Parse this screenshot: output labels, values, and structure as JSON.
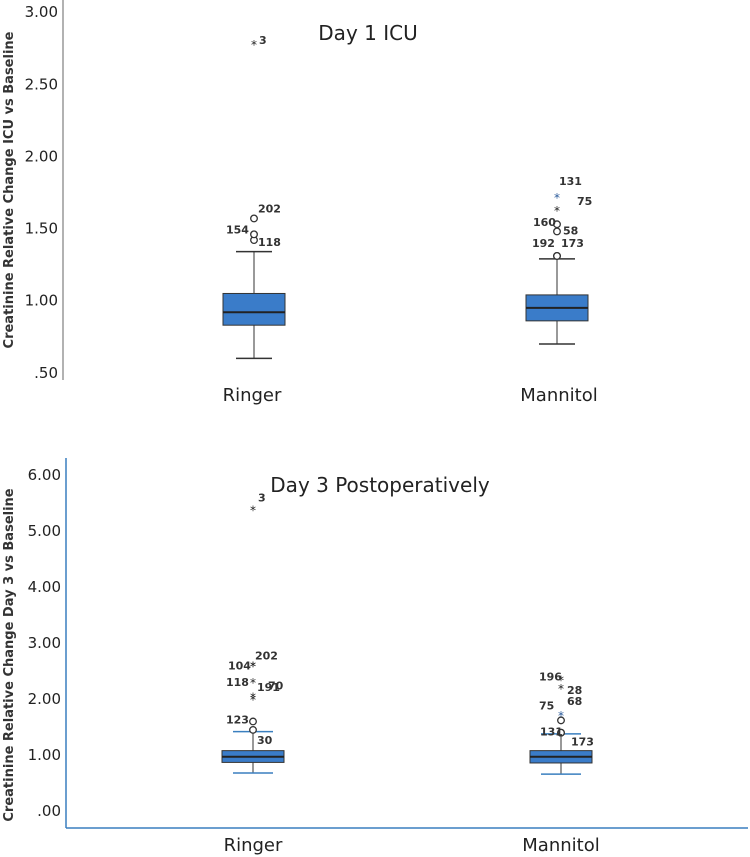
{
  "colors": {
    "box": "#3a7cc9",
    "axis": "#666666",
    "axis_accent": "#3a7fbf",
    "text": "#222222",
    "star_accent": "#2a5a9a"
  },
  "chart_data": [
    {
      "type": "boxplot",
      "title": "Day 1 ICU",
      "ylabel": "Creatinine Relative Change ICU vs Baseline",
      "ylim": [
        0.45,
        3.05
      ],
      "yticks": [
        0.5,
        1.0,
        1.5,
        2.0,
        2.5,
        3.0
      ],
      "ytick_labels": [
        ".50",
        "1.00",
        "1.50",
        "2.00",
        "2.50",
        "3.00"
      ],
      "categories": [
        "Ringer",
        "Mannitol"
      ],
      "boxes": [
        {
          "name": "Ringer",
          "whisker_low": 0.6,
          "q1": 0.83,
          "median": 0.92,
          "q3": 1.05,
          "whisker_high": 1.34,
          "outliers": [
            {
              "id": "118",
              "value": 1.42,
              "kind": "circle"
            },
            {
              "id": "154",
              "value": 1.46,
              "kind": "circle"
            },
            {
              "id": "202",
              "value": 1.57,
              "kind": "circle"
            },
            {
              "id": "3",
              "value": 2.78,
              "kind": "star"
            }
          ]
        },
        {
          "name": "Mannitol",
          "whisker_low": 0.7,
          "q1": 0.86,
          "median": 0.95,
          "q3": 1.04,
          "whisker_high": 1.29,
          "outliers": [
            {
              "id": "192",
              "value": 1.31,
              "kind": "circle"
            },
            {
              "id": "173",
              "value": 1.31,
              "kind": "circle"
            },
            {
              "id": "58",
              "value": 1.48,
              "kind": "circle"
            },
            {
              "id": "160",
              "value": 1.53,
              "kind": "circle"
            },
            {
              "id": "75",
              "value": 1.63,
              "kind": "star"
            },
            {
              "id": "131",
              "value": 1.72,
              "kind": "star"
            }
          ]
        }
      ]
    },
    {
      "type": "boxplot",
      "title": "Day 3 Postoperatively",
      "ylabel": "Creatinine Relative Change Day 3 vs Baseline",
      "ylim": [
        -0.3,
        6.3
      ],
      "yticks": [
        0,
        1,
        2,
        3,
        4,
        5,
        6
      ],
      "ytick_labels": [
        ".00",
        "1.00",
        "2.00",
        "3.00",
        "4.00",
        "5.00",
        "6.00"
      ],
      "categories": [
        "Ringer",
        "Mannitol"
      ],
      "boxes": [
        {
          "name": "Ringer",
          "whisker_low": 0.68,
          "q1": 0.87,
          "median": 0.97,
          "q3": 1.08,
          "whisker_high": 1.42,
          "outliers": [
            {
              "id": "30",
              "value": 1.45,
              "kind": "circle"
            },
            {
              "id": "123",
              "value": 1.6,
              "kind": "circle"
            },
            {
              "id": "191",
              "value": 2.0,
              "kind": "star"
            },
            {
              "id": "70",
              "value": 2.05,
              "kind": "star"
            },
            {
              "id": "118",
              "value": 2.3,
              "kind": "star"
            },
            {
              "id": "104",
              "value": 2.6,
              "kind": "star"
            },
            {
              "id": "202",
              "value": 2.6,
              "kind": "star"
            },
            {
              "id": "3",
              "value": 5.38,
              "kind": "star"
            }
          ]
        },
        {
          "name": "Mannitol",
          "whisker_low": 0.66,
          "q1": 0.86,
          "median": 0.97,
          "q3": 1.08,
          "whisker_high": 1.38,
          "outliers": [
            {
              "id": "173",
              "value": 1.4,
              "kind": "circle"
            },
            {
              "id": "131",
              "value": 1.4,
              "kind": "circle"
            },
            {
              "id": "75",
              "value": 1.62,
              "kind": "circle"
            },
            {
              "id": "68",
              "value": 1.72,
              "kind": "star"
            },
            {
              "id": "28",
              "value": 2.2,
              "kind": "star"
            },
            {
              "id": "196",
              "value": 2.35,
              "kind": "star"
            }
          ]
        }
      ]
    }
  ]
}
